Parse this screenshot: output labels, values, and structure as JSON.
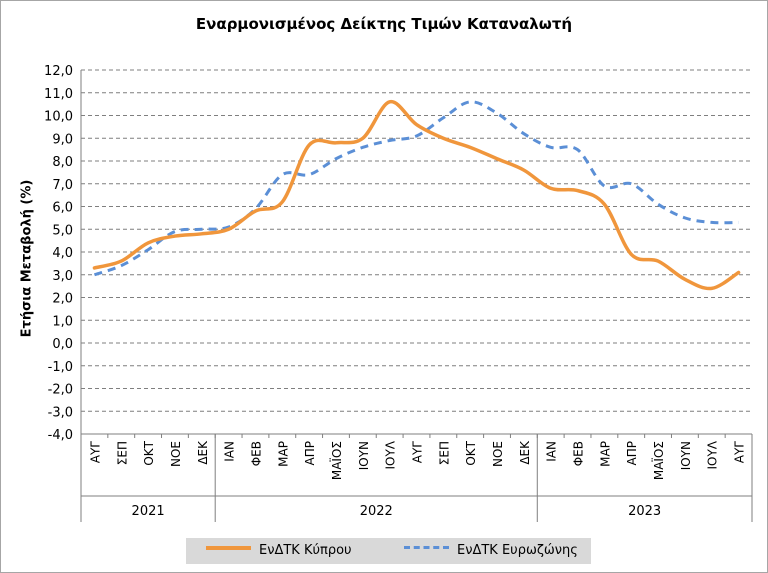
{
  "chart_data": {
    "type": "line",
    "title": "Εναρμονισμένος Δείκτης Τιμών Καταναλωτή",
    "ylabel": "Ετήσια Μεταβολή (%)",
    "xlabel": "",
    "ylim": [
      -4,
      12
    ],
    "yticks": [
      "-4,0",
      "-3,0",
      "-2,0",
      "-1,0",
      "0,0",
      "1,0",
      "2,0",
      "3,0",
      "4,0",
      "5,0",
      "6,0",
      "7,0",
      "8,0",
      "9,0",
      "10,0",
      "11,0",
      "12,0"
    ],
    "categories": [
      "ΑΥΓ",
      "ΣΕΠ",
      "ΟΚΤ",
      "ΝΟΕ",
      "ΔΕΚ",
      "ΙΑΝ",
      "ΦΕΒ",
      "ΜΑΡ",
      "ΑΠΡ",
      "ΜΑΪΟΣ",
      "ΙΟΥΝ",
      "ΙΟΥΛ",
      "ΑΥΓ",
      "ΣΕΠ",
      "ΟΚΤ",
      "ΝΟΕ",
      "ΔΕΚ",
      "ΙΑΝ",
      "ΦΕΒ",
      "ΜΑΡ",
      "ΑΠΡ",
      "ΜΑΪΟΣ",
      "ΙΟΥΝ",
      "ΙΟΥΛ",
      "ΑΥΓ"
    ],
    "years": [
      {
        "label": "2021",
        "from": 0,
        "to": 4
      },
      {
        "label": "2022",
        "from": 5,
        "to": 16
      },
      {
        "label": "2023",
        "from": 17,
        "to": 24
      }
    ],
    "gridlines": true,
    "legend_position": "bottom",
    "series": [
      {
        "name": "ΕνΔΤΚ Κύπρου",
        "color": "#f0963c",
        "dash": "solid",
        "values": [
          3.3,
          3.6,
          4.4,
          4.7,
          4.8,
          5.0,
          5.8,
          6.2,
          8.7,
          8.8,
          9.0,
          10.6,
          9.6,
          9.0,
          8.6,
          8.1,
          7.6,
          6.8,
          6.7,
          6.1,
          3.9,
          3.6,
          2.8,
          2.4,
          3.1
        ]
      },
      {
        "name": "ΕνΔΤΚ Ευρωζώνης",
        "color": "#5b8fd6",
        "dash": "dashed",
        "values": [
          3.0,
          3.4,
          4.1,
          4.9,
          5.0,
          5.1,
          5.9,
          7.4,
          7.4,
          8.1,
          8.6,
          8.9,
          9.1,
          9.9,
          10.6,
          10.1,
          9.2,
          8.6,
          8.5,
          6.9,
          7.0,
          6.1,
          5.5,
          5.3,
          5.3
        ]
      }
    ]
  }
}
